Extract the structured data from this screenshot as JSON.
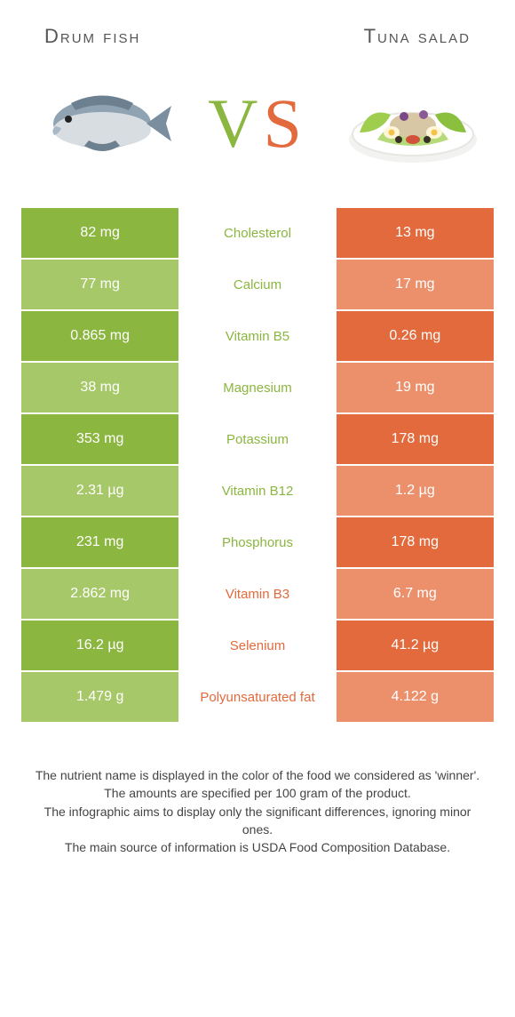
{
  "foods": {
    "left": {
      "title": "Drum fish",
      "color": "#8bb63f"
    },
    "right": {
      "title": "Tuna salad",
      "color": "#e26a3c"
    }
  },
  "light": {
    "left": "#a6c868",
    "right": "#ec906c"
  },
  "vs": {
    "v": "V",
    "s": "S"
  },
  "rows": [
    {
      "name": "Cholesterol",
      "left": "82 mg",
      "right": "13 mg",
      "winner": "left"
    },
    {
      "name": "Calcium",
      "left": "77 mg",
      "right": "17 mg",
      "winner": "left"
    },
    {
      "name": "Vitamin B5",
      "left": "0.865 mg",
      "right": "0.26 mg",
      "winner": "left"
    },
    {
      "name": "Magnesium",
      "left": "38 mg",
      "right": "19 mg",
      "winner": "left"
    },
    {
      "name": "Potassium",
      "left": "353 mg",
      "right": "178 mg",
      "winner": "left"
    },
    {
      "name": "Vitamin B12",
      "left": "2.31 µg",
      "right": "1.2 µg",
      "winner": "left"
    },
    {
      "name": "Phosphorus",
      "left": "231 mg",
      "right": "178 mg",
      "winner": "left"
    },
    {
      "name": "Vitamin B3",
      "left": "2.862 mg",
      "right": "6.7 mg",
      "winner": "right"
    },
    {
      "name": "Selenium",
      "left": "16.2 µg",
      "right": "41.2 µg",
      "winner": "right"
    },
    {
      "name": "Polyunsaturated fat",
      "left": "1.479 g",
      "right": "4.122 g",
      "winner": "right"
    }
  ],
  "footer": {
    "l1": "The nutrient name is displayed in the color of the food we considered as 'winner'.",
    "l2": "The amounts are specified per 100 gram of the product.",
    "l3": "The infographic aims to display only the significant differences, ignoring minor ones.",
    "l4": "The main source of information is USDA Food Composition Database."
  }
}
